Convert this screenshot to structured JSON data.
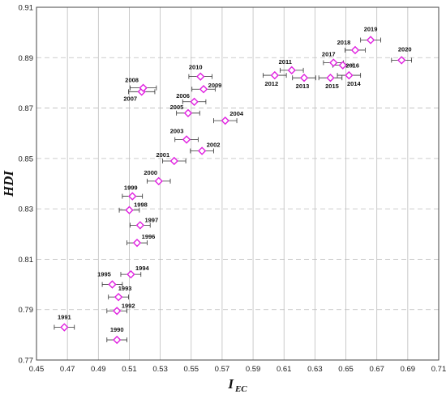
{
  "chart_data": {
    "type": "scatter",
    "xlabel": "I",
    "xlabel_sub": "EC",
    "ylabel": "HDI",
    "xlim": [
      0.45,
      0.71
    ],
    "ylim": [
      0.77,
      0.91
    ],
    "xticks": [
      0.45,
      0.47,
      0.49,
      0.51,
      0.53,
      0.55,
      0.57,
      0.59,
      0.61,
      0.63,
      0.65,
      0.67,
      0.69,
      0.71
    ],
    "yticks": [
      0.77,
      0.79,
      0.81,
      0.83,
      0.85,
      0.87,
      0.89,
      0.91
    ],
    "grid": true,
    "marker": "diamond",
    "marker_color": "#e020e0",
    "points": [
      {
        "label": "1990",
        "x": 0.502,
        "y": 0.778,
        "xerr": 0.0065
      },
      {
        "label": "1991",
        "x": 0.468,
        "y": 0.783,
        "xerr": 0.0065
      },
      {
        "label": "1992",
        "x": 0.502,
        "y": 0.7895,
        "xerr": 0.0065
      },
      {
        "label": "1993",
        "x": 0.503,
        "y": 0.795,
        "xerr": 0.0065
      },
      {
        "label": "1994",
        "x": 0.511,
        "y": 0.804,
        "xerr": 0.0065
      },
      {
        "label": "1995",
        "x": 0.499,
        "y": 0.8,
        "xerr": 0.0065
      },
      {
        "label": "1996",
        "x": 0.515,
        "y": 0.8165,
        "xerr": 0.0065
      },
      {
        "label": "1997",
        "x": 0.517,
        "y": 0.8235,
        "xerr": 0.0065
      },
      {
        "label": "1998",
        "x": 0.51,
        "y": 0.8295,
        "xerr": 0.0065
      },
      {
        "label": "1999",
        "x": 0.512,
        "y": 0.835,
        "xerr": 0.0065
      },
      {
        "label": "2000",
        "x": 0.529,
        "y": 0.841,
        "xerr": 0.0075
      },
      {
        "label": "2001",
        "x": 0.539,
        "y": 0.849,
        "xerr": 0.0075
      },
      {
        "label": "2002",
        "x": 0.557,
        "y": 0.853,
        "xerr": 0.0075
      },
      {
        "label": "2003",
        "x": 0.547,
        "y": 0.8575,
        "xerr": 0.0075
      },
      {
        "label": "2004",
        "x": 0.572,
        "y": 0.865,
        "xerr": 0.0075
      },
      {
        "label": "2005",
        "x": 0.548,
        "y": 0.868,
        "xerr": 0.0075
      },
      {
        "label": "2006",
        "x": 0.552,
        "y": 0.8725,
        "xerr": 0.0075
      },
      {
        "label": "2007",
        "x": 0.518,
        "y": 0.8765,
        "xerr": 0.0085
      },
      {
        "label": "2008",
        "x": 0.519,
        "y": 0.878,
        "xerr": 0.0085
      },
      {
        "label": "2009",
        "x": 0.558,
        "y": 0.8775,
        "xerr": 0.0075
      },
      {
        "label": "2010",
        "x": 0.556,
        "y": 0.8825,
        "xerr": 0.0075
      },
      {
        "label": "2011",
        "x": 0.615,
        "y": 0.885,
        "xerr": 0.0075
      },
      {
        "label": "2012",
        "x": 0.604,
        "y": 0.883,
        "xerr": 0.0075
      },
      {
        "label": "2013",
        "x": 0.623,
        "y": 0.882,
        "xerr": 0.0075
      },
      {
        "label": "2014",
        "x": 0.652,
        "y": 0.883,
        "xerr": 0.0075
      },
      {
        "label": "2015",
        "x": 0.64,
        "y": 0.882,
        "xerr": 0.0075
      },
      {
        "label": "2016",
        "x": 0.648,
        "y": 0.887,
        "xerr": 0.0065
      },
      {
        "label": "2017",
        "x": 0.642,
        "y": 0.888,
        "xerr": 0.0065
      },
      {
        "label": "2018",
        "x": 0.656,
        "y": 0.893,
        "xerr": 0.0065
      },
      {
        "label": "2019",
        "x": 0.666,
        "y": 0.897,
        "xerr": 0.0065
      },
      {
        "label": "2020",
        "x": 0.686,
        "y": 0.889,
        "xerr": 0.0065
      }
    ]
  }
}
